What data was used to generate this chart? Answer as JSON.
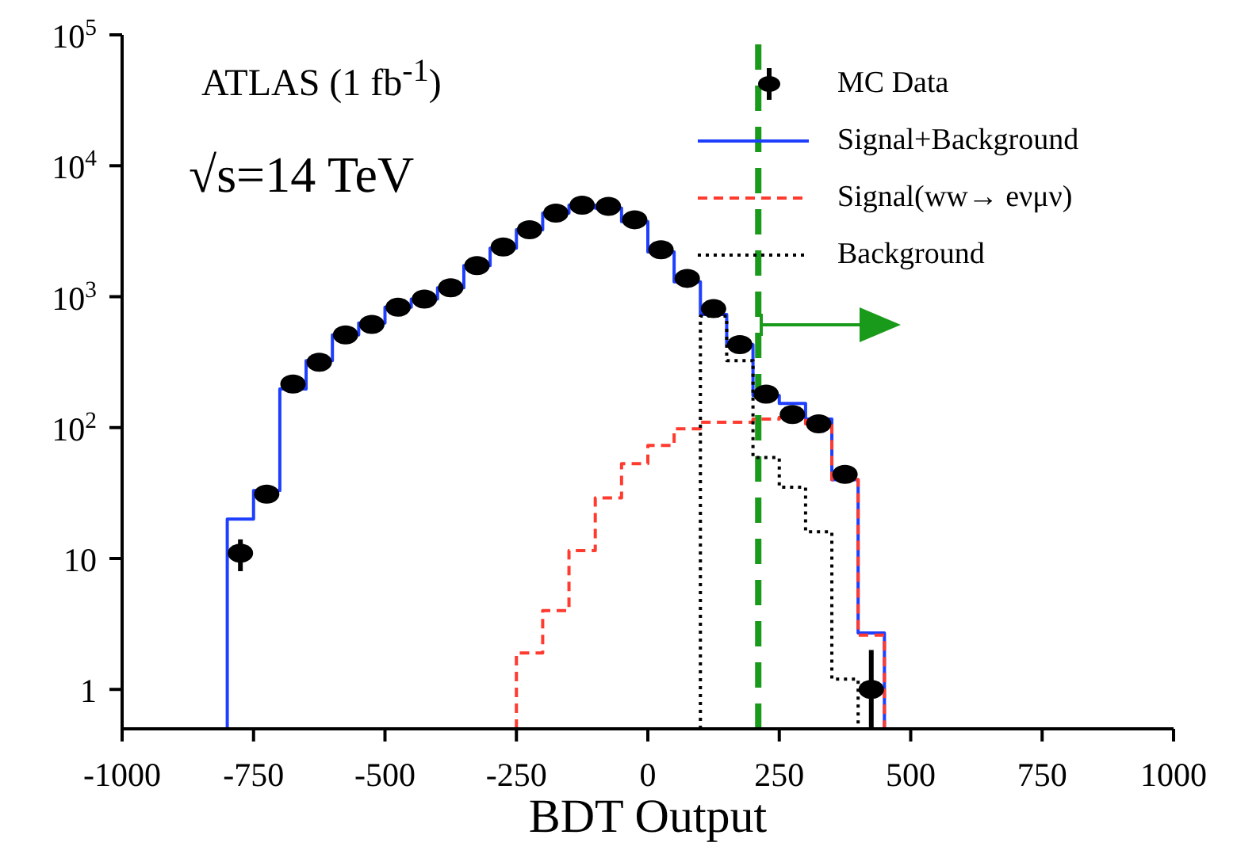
{
  "chart_data": {
    "type": "histogram",
    "xlabel": "BDT Output",
    "annotations": [
      "ATLAS (1 fb$^{-1}$)",
      "√s=14 TeV"
    ],
    "bins": [
      -800,
      -750,
      -700,
      -650,
      -600,
      -550,
      -500,
      -450,
      -400,
      -350,
      -300,
      -250,
      -200,
      -150,
      -100,
      -50,
      0,
      50,
      100,
      150,
      200,
      250,
      300,
      350,
      400,
      450
    ],
    "series": [
      {
        "name": "MC Data",
        "type": "scatter",
        "color": "#000000",
        "x": [
          -775,
          -725,
          -675,
          -625,
          -575,
          -525,
          -475,
          -425,
          -375,
          -325,
          -275,
          -225,
          -175,
          -125,
          -75,
          -25,
          25,
          75,
          125,
          175,
          225,
          275,
          325,
          375,
          425
        ],
        "values": [
          11,
          31,
          215,
          316,
          510,
          615,
          830,
          960,
          1170,
          1730,
          2400,
          3250,
          4350,
          5000,
          4900,
          3870,
          2280,
          1380,
          810,
          430,
          180,
          126,
          107,
          44,
          1.0
        ],
        "errors": [
          3,
          null,
          null,
          null,
          null,
          null,
          null,
          null,
          null,
          null,
          null,
          null,
          null,
          null,
          null,
          null,
          null,
          null,
          null,
          null,
          null,
          null,
          null,
          null,
          [
            0.5,
            2
          ]
        ]
      },
      {
        "name": "Signal+Background",
        "type": "histogram",
        "color": "#1f3fff",
        "line_style": "solid",
        "values": [
          20,
          33,
          197,
          325,
          510,
          630,
          830,
          960,
          1170,
          1730,
          2350,
          3250,
          4350,
          5000,
          4750,
          3750,
          2200,
          1300,
          730,
          430,
          176,
          153,
          116,
          40,
          2.7
        ]
      },
      {
        "name": "Signal(ww→ eνμν)",
        "type": "histogram",
        "color": "#ff3b2f",
        "line_style": "dashed",
        "bins": [
          -250,
          -200,
          -150,
          -100,
          -50,
          0,
          50,
          100,
          150,
          200,
          250,
          300,
          350,
          400,
          450
        ],
        "values": [
          1.9,
          4.0,
          11.5,
          29,
          53,
          73,
          98,
          110,
          110,
          116,
          120,
          107,
          40,
          2.6
        ]
      },
      {
        "name": "Background",
        "type": "histogram",
        "color": "#000000",
        "line_style": "dotted",
        "bins": [
          100,
          150,
          200,
          250,
          300,
          350,
          400
        ],
        "values": [
          710,
          325,
          59,
          35,
          16,
          1.2
        ]
      }
    ],
    "xlim": [
      -1000,
      1000
    ],
    "xticks": [
      -1000,
      -750,
      -500,
      -250,
      0,
      250,
      500,
      750,
      1000
    ],
    "ylim": [
      0.5,
      100000
    ],
    "log": "y",
    "yticks": [
      {
        "value": 1,
        "label": "1"
      },
      {
        "value": 10,
        "label": "10"
      },
      {
        "value": 100,
        "label": "10$^{2}$"
      },
      {
        "value": 1000,
        "label": "10$^{3}$"
      },
      {
        "value": 10000,
        "label": "10$^{4}$"
      },
      {
        "value": 100000,
        "label": "10$^{5}$"
      }
    ],
    "ref_lines": [
      {
        "axis": "x",
        "value": 210,
        "color": "#1a9a1a",
        "line_style": "dashed"
      }
    ],
    "marker": "circle",
    "legend": "top right"
  }
}
